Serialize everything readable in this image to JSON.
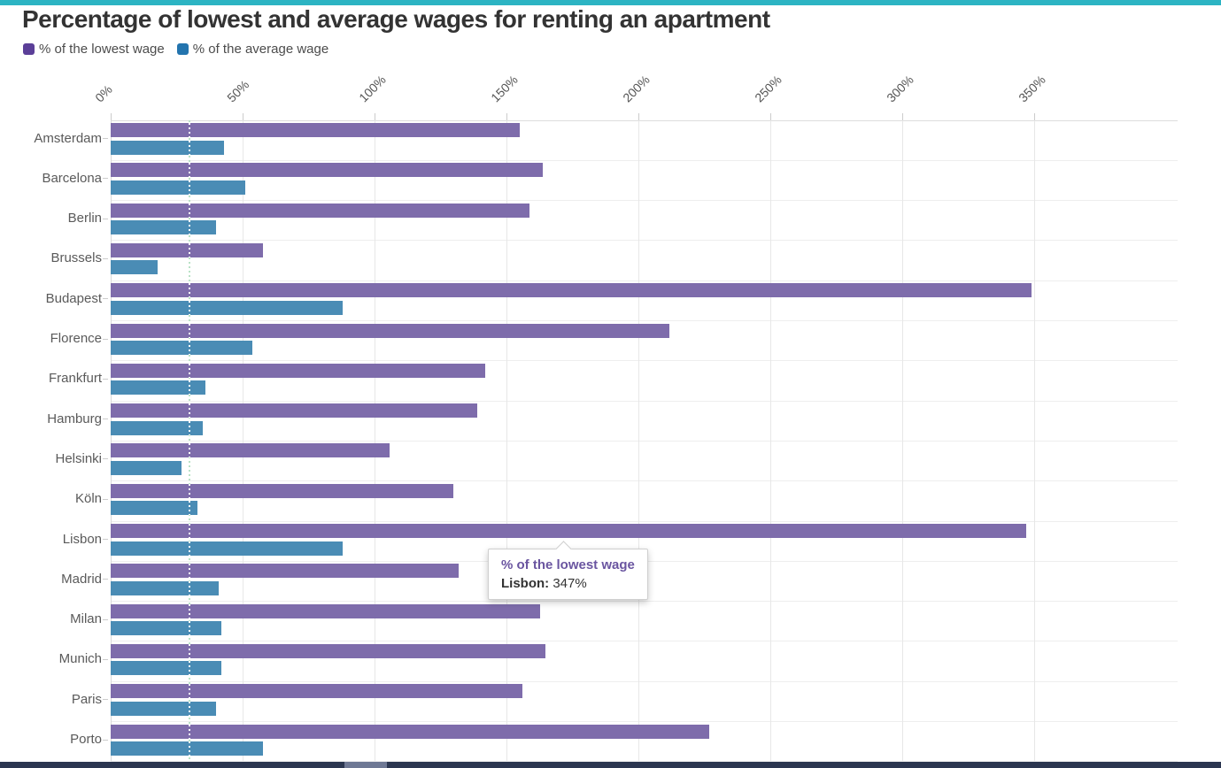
{
  "page": {
    "top_strip_color": "#2cb4c3",
    "bottom_strip_color": "#2b3650",
    "bottom_thumb_color": "#6e7894"
  },
  "header": {
    "title": "Percentage of lowest and average wages for renting an apartment"
  },
  "legend": [
    {
      "label": "% of the lowest wage",
      "color": "#5b3f98"
    },
    {
      "label": "% of the average wage",
      "color": "#2374ae"
    }
  ],
  "chart_data": {
    "type": "bar",
    "orientation": "horizontal",
    "title": "Percentage of lowest and average wages for renting an apartment",
    "categories": [
      "Amsterdam",
      "Barcelona",
      "Berlin",
      "Brussels",
      "Budapest",
      "Florence",
      "Frankfurt",
      "Hamburg",
      "Helsinki",
      "Köln",
      "Lisbon",
      "Madrid",
      "Milan",
      "Munich",
      "Paris",
      "Porto"
    ],
    "series": [
      {
        "name": "% of the lowest wage",
        "color": "#7e6cab",
        "values": [
          155,
          164,
          159,
          58,
          349,
          212,
          142,
          139,
          106,
          130,
          347,
          132,
          163,
          165,
          156,
          227
        ]
      },
      {
        "name": "% of the average wage",
        "color": "#4a8cb5",
        "values": [
          43,
          51,
          40,
          18,
          88,
          54,
          36,
          35,
          27,
          33,
          88,
          41,
          42,
          42,
          40,
          58
        ]
      }
    ],
    "x_ticks": [
      "0%",
      "50%",
      "100%",
      "150%",
      "200%",
      "250%",
      "300%",
      "350%"
    ],
    "x_tick_values": [
      0,
      50,
      100,
      150,
      200,
      250,
      300,
      350
    ],
    "xlim": [
      0,
      350
    ],
    "unit": "%",
    "reference_line": 30,
    "grid": true,
    "legend_position": "top"
  },
  "tooltip": {
    "series": "% of the lowest wage",
    "series_color": "#6a55a0",
    "city": "Lisbon:",
    "value": "347%"
  }
}
